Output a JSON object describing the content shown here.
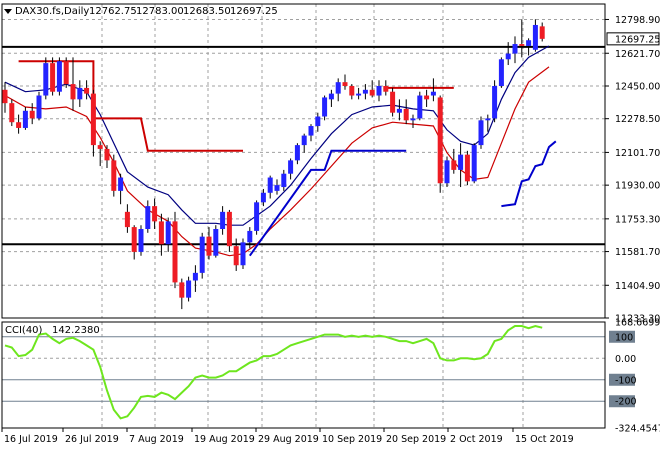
{
  "header": {
    "symbol": "DAX30.fs,Daily",
    "open": "12762.75",
    "high": "12783.00",
    "low": "12683.50",
    "close": "12697.25"
  },
  "indicator": {
    "name": "CCI(40)",
    "value": "142.2380"
  },
  "colors": {
    "bull": "#2323ff",
    "bear": "#ee1c24",
    "ma_fast": "#000080",
    "ma_slow": "#cc0000",
    "supertrend_up": "#0000cc",
    "supertrend_down": "#cc0000",
    "cci": "#6ee61e",
    "level_line": "#000000",
    "grid": "#a0a0a0",
    "last_price_label_bg": "#ffffff"
  },
  "chart_data": [
    {
      "type": "candlestick",
      "title": "DAX30.fs,Daily",
      "ylim": [
        11233.3,
        12880
      ],
      "y_ticks": [
        "12798.90",
        "12621.70",
        "12450.00",
        "12278.50",
        "12101.70",
        "11930.00",
        "11753.30",
        "11581.70",
        "11404.90",
        "11233.30"
      ],
      "x_labels": [
        "16 Jul 2019",
        "26 Jul 2019",
        "7 Aug 2019",
        "19 Aug 2019",
        "29 Aug 2019",
        "10 Sep 2019",
        "20 Sep 2019",
        "2 Oct 2019",
        "15 Oct 2019"
      ],
      "last_price": "12697.25",
      "horizontal_levels": [
        12655,
        11620
      ],
      "ohlc": [
        [
          12430,
          12470,
          12310,
          12360
        ],
        [
          12360,
          12380,
          12240,
          12260
        ],
        [
          12260,
          12300,
          12200,
          12230
        ],
        [
          12230,
          12340,
          12220,
          12320
        ],
        [
          12320,
          12360,
          12250,
          12280
        ],
        [
          12280,
          12420,
          12270,
          12400
        ],
        [
          12400,
          12600,
          12380,
          12570
        ],
        [
          12570,
          12600,
          12400,
          12420
        ],
        [
          12420,
          12600,
          12400,
          12580
        ],
        [
          12580,
          12600,
          12440,
          12460
        ],
        [
          12460,
          12600,
          12320,
          12380
        ],
        [
          12380,
          12480,
          12340,
          12440
        ],
        [
          12440,
          12480,
          12380,
          12410
        ],
        [
          12410,
          12430,
          12080,
          12140
        ],
        [
          12140,
          12160,
          12030,
          12120
        ],
        [
          12120,
          12140,
          12020,
          12060
        ],
        [
          12060,
          12090,
          11870,
          11900
        ],
        [
          11900,
          11990,
          11830,
          11970
        ],
        [
          11790,
          11830,
          11680,
          11710
        ],
        [
          11710,
          11720,
          11540,
          11580
        ],
        [
          11580,
          11720,
          11560,
          11700
        ],
        [
          11700,
          11850,
          11680,
          11820
        ],
        [
          11820,
          11860,
          11700,
          11740
        ],
        [
          11740,
          11780,
          11560,
          11620
        ],
        [
          11620,
          11760,
          11580,
          11740
        ],
        [
          11740,
          11790,
          11390,
          11420
        ],
        [
          11420,
          11440,
          11280,
          11340
        ],
        [
          11340,
          11450,
          11320,
          11430
        ],
        [
          11430,
          11510,
          11370,
          11470
        ],
        [
          11470,
          11680,
          11440,
          11660
        ],
        [
          11660,
          11710,
          11540,
          11560
        ],
        [
          11560,
          11720,
          11550,
          11700
        ],
        [
          11700,
          11820,
          11670,
          11790
        ],
        [
          11790,
          11800,
          11580,
          11610
        ],
        [
          11610,
          11650,
          11480,
          11510
        ],
        [
          11510,
          11650,
          11490,
          11630
        ],
        [
          11630,
          11710,
          11600,
          11690
        ],
        [
          11690,
          11850,
          11670,
          11840
        ],
        [
          11840,
          11910,
          11820,
          11890
        ],
        [
          11890,
          11980,
          11860,
          11970
        ],
        [
          11900,
          11960,
          11880,
          11930
        ],
        [
          11920,
          12010,
          11900,
          11990
        ],
        [
          11990,
          12070,
          11960,
          12060
        ],
        [
          12060,
          12150,
          12040,
          12140
        ],
        [
          12140,
          12200,
          12100,
          12190
        ],
        [
          12190,
          12250,
          12160,
          12240
        ],
        [
          12240,
          12310,
          12210,
          12290
        ],
        [
          12290,
          12400,
          12270,
          12390
        ],
        [
          12380,
          12430,
          12340,
          12410
        ],
        [
          12410,
          12490,
          12370,
          12470
        ],
        [
          12470,
          12510,
          12430,
          12450
        ],
        [
          12450,
          12460,
          12380,
          12400
        ],
        [
          12400,
          12440,
          12380,
          12410
        ],
        [
          12410,
          12460,
          12380,
          12430
        ],
        [
          12430,
          12480,
          12390,
          12400
        ],
        [
          12400,
          12480,
          12370,
          12450
        ],
        [
          12450,
          12480,
          12400,
          12420
        ],
        [
          12420,
          12440,
          12290,
          12310
        ],
        [
          12310,
          12380,
          12270,
          12330
        ],
        [
          12330,
          12380,
          12250,
          12270
        ],
        [
          12270,
          12300,
          12230,
          12280
        ],
        [
          12280,
          12420,
          12270,
          12400
        ],
        [
          12400,
          12430,
          12340,
          12380
        ],
        [
          12400,
          12490,
          12370,
          12420
        ],
        [
          12390,
          12400,
          11890,
          11940
        ],
        [
          11940,
          12080,
          11920,
          12060
        ],
        [
          12060,
          12120,
          11990,
          12010
        ],
        [
          12010,
          12150,
          11920,
          12090
        ],
        [
          12090,
          12110,
          11930,
          11950
        ],
        [
          11950,
          12150,
          11940,
          12140
        ],
        [
          12140,
          12290,
          12120,
          12270
        ],
        [
          12270,
          12300,
          12210,
          12280
        ],
        [
          12280,
          12480,
          12260,
          12450
        ],
        [
          12450,
          12600,
          12440,
          12590
        ],
        [
          12590,
          12680,
          12560,
          12620
        ],
        [
          12620,
          12710,
          12570,
          12670
        ],
        [
          12670,
          12800,
          12600,
          12660
        ],
        [
          12660,
          12700,
          12610,
          12690
        ],
        [
          12640,
          12800,
          12630,
          12770
        ],
        [
          12762.75,
          12783.0,
          12683.5,
          12697.25
        ]
      ],
      "ma_fast": [
        [
          0,
          12470
        ],
        [
          3,
          12420
        ],
        [
          6,
          12430
        ],
        [
          9,
          12460
        ],
        [
          12,
          12420
        ],
        [
          14,
          12300
        ],
        [
          16,
          12150
        ],
        [
          18,
          12000
        ],
        [
          21,
          11920
        ],
        [
          24,
          11880
        ],
        [
          26,
          11800
        ],
        [
          28,
          11730
        ],
        [
          31,
          11730
        ],
        [
          33,
          11720
        ],
        [
          35,
          11720
        ],
        [
          37,
          11770
        ],
        [
          39,
          11820
        ],
        [
          42,
          11930
        ],
        [
          45,
          12070
        ],
        [
          48,
          12200
        ],
        [
          51,
          12300
        ],
        [
          54,
          12340
        ],
        [
          57,
          12350
        ],
        [
          60,
          12330
        ],
        [
          63,
          12320
        ],
        [
          65,
          12220
        ],
        [
          67,
          12160
        ],
        [
          69,
          12140
        ],
        [
          71,
          12200
        ],
        [
          73,
          12380
        ],
        [
          75,
          12520
        ],
        [
          77,
          12600
        ],
        [
          80,
          12660
        ]
      ],
      "ma_slow": [
        [
          0,
          12400
        ],
        [
          3,
          12340
        ],
        [
          6,
          12330
        ],
        [
          9,
          12340
        ],
        [
          12,
          12290
        ],
        [
          14,
          12180
        ],
        [
          16,
          12050
        ],
        [
          18,
          11900
        ],
        [
          21,
          11800
        ],
        [
          24,
          11740
        ],
        [
          26,
          11660
        ],
        [
          28,
          11600
        ],
        [
          31,
          11580
        ],
        [
          33,
          11560
        ],
        [
          35,
          11570
        ],
        [
          37,
          11620
        ],
        [
          39,
          11700
        ],
        [
          42,
          11800
        ],
        [
          45,
          11910
        ],
        [
          48,
          12030
        ],
        [
          51,
          12150
        ],
        [
          54,
          12230
        ],
        [
          57,
          12260
        ],
        [
          60,
          12250
        ],
        [
          63,
          12240
        ],
        [
          65,
          12100
        ],
        [
          67,
          12010
        ],
        [
          69,
          11960
        ],
        [
          71,
          11970
        ],
        [
          73,
          12150
        ],
        [
          75,
          12330
        ],
        [
          77,
          12470
        ],
        [
          80,
          12550
        ]
      ],
      "supertrend": [
        {
          "dir": "down",
          "points": [
            [
              2,
              12580
            ],
            [
              13,
              12580
            ],
            [
              13,
              12280
            ],
            [
              20,
              12280
            ],
            [
              21,
              12110
            ],
            [
              35,
              12110
            ]
          ]
        },
        {
          "dir": "up",
          "points": [
            [
              36,
              11560
            ],
            [
              45,
              12010
            ],
            [
              47,
              12010
            ],
            [
              48,
              12110
            ],
            [
              59,
              12110
            ]
          ]
        },
        {
          "dir": "down",
          "points": [
            [
              56,
              12440
            ],
            [
              66,
              12440
            ]
          ]
        },
        {
          "dir": "up",
          "points": [
            [
              73,
              11820
            ],
            [
              75,
              11830
            ],
            [
              76,
              11950
            ],
            [
              77,
              11960
            ],
            [
              78,
              12030
            ],
            [
              79,
              12040
            ],
            [
              80,
              12130
            ],
            [
              81,
              12160
            ]
          ]
        }
      ]
    },
    {
      "type": "line",
      "title": "CCI(40)",
      "ylim": [
        -324.4547,
        168.6699
      ],
      "y_ticks": [
        "168.6699",
        "100",
        "0.00",
        "-100",
        "-200",
        "-324.4547"
      ],
      "levels": [
        100,
        -100,
        -200
      ],
      "series": [
        {
          "name": "CCI(40)",
          "values": [
            60,
            50,
            10,
            15,
            40,
            110,
            115,
            90,
            70,
            90,
            95,
            80,
            60,
            40,
            -40,
            -150,
            -240,
            -280,
            -270,
            -230,
            -180,
            -175,
            -180,
            -160,
            -170,
            -190,
            -160,
            -130,
            -90,
            -80,
            -90,
            -90,
            -80,
            -60,
            -60,
            -40,
            -20,
            -10,
            10,
            10,
            20,
            40,
            60,
            70,
            80,
            90,
            100,
            110,
            110,
            110,
            100,
            105,
            100,
            105,
            100,
            105,
            100,
            90,
            80,
            80,
            70,
            80,
            90,
            70,
            0,
            -10,
            -10,
            0,
            0,
            -5,
            0,
            20,
            80,
            90,
            130,
            150,
            150,
            140,
            150,
            142.238
          ]
        }
      ]
    }
  ]
}
